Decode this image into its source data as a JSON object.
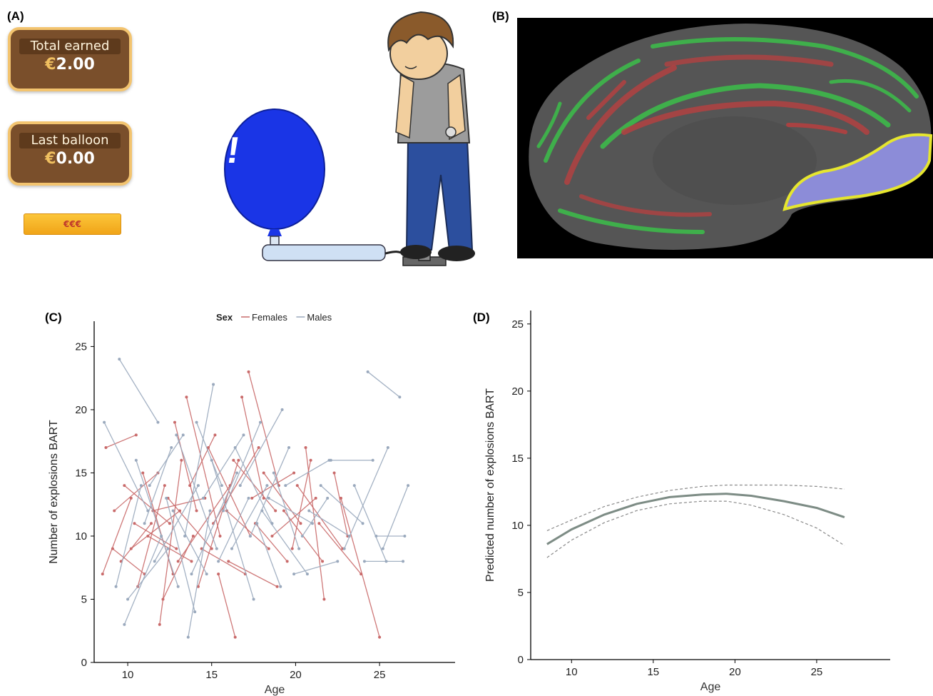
{
  "panel_labels": {
    "a": "(A)",
    "b": "(B)",
    "c": "(C)",
    "d": "(D)"
  },
  "game": {
    "total_label": "Total earned",
    "total_currency": "€",
    "total_amount": "2.00",
    "last_label": "Last balloon",
    "last_currency": "€",
    "last_amount": "0.00",
    "collect_button": "€€€",
    "balloon_mark": "!!",
    "colors": {
      "balloon": "#1a35e6",
      "box": "#7a4f2b",
      "box_border": "#f3c46f",
      "button": "#f5b325"
    }
  },
  "brain": {
    "colors": {
      "surface": "#555555",
      "sulci": "#3cbf4a",
      "gyri": "#b84040",
      "roi": "#8c8cd8",
      "roi_outline": "#e6e62e"
    }
  },
  "chart_data": [
    {
      "type": "line",
      "panel": "C",
      "xlabel": "Age",
      "ylabel": "Number of explosions BART",
      "xlim": [
        8,
        29.5
      ],
      "ylim": [
        0,
        27
      ],
      "xticks": [
        10,
        15,
        20,
        25
      ],
      "yticks": [
        0,
        5,
        10,
        15,
        20,
        25
      ],
      "legend": {
        "title": "Sex",
        "position": "top",
        "entries": [
          "Females",
          "Males"
        ]
      },
      "colors": {
        "Females": "#c96a6a",
        "Males": "#9aa9bd"
      },
      "series": [
        {
          "name": "Females",
          "segments": [
            [
              [
                8.7,
                17
              ],
              [
                10.5,
                18
              ]
            ],
            [
              [
                9.2,
                12
              ],
              [
                11.8,
                15
              ]
            ],
            [
              [
                8.5,
                7
              ],
              [
                10.2,
                13
              ]
            ],
            [
              [
                9.8,
                14
              ],
              [
                12.5,
                11
              ]
            ],
            [
              [
                10.2,
                9
              ],
              [
                13.1,
                12
              ]
            ],
            [
              [
                10.6,
                6
              ],
              [
                12.2,
                14
              ]
            ],
            [
              [
                11.2,
                10
              ],
              [
                13.8,
                8
              ]
            ],
            [
              [
                11.9,
                3
              ],
              [
                13.2,
                16
              ]
            ],
            [
              [
                12.4,
                13
              ],
              [
                15.0,
                9
              ]
            ],
            [
              [
                12.8,
                19
              ],
              [
                14.1,
                12
              ]
            ],
            [
              [
                13.5,
                21
              ],
              [
                15.5,
                10
              ]
            ],
            [
              [
                13.0,
                8
              ],
              [
                16.1,
                14
              ]
            ],
            [
              [
                14.2,
                6
              ],
              [
                16.6,
                16
              ]
            ],
            [
              [
                14.8,
                17
              ],
              [
                17.3,
                10
              ]
            ],
            [
              [
                15.4,
                7
              ],
              [
                16.4,
                2
              ]
            ],
            [
              [
                15.9,
                12
              ],
              [
                18.4,
                9
              ]
            ],
            [
              [
                16.3,
                16
              ],
              [
                18.8,
                12
              ]
            ],
            [
              [
                16.8,
                21
              ],
              [
                18.1,
                13
              ]
            ],
            [
              [
                17.2,
                23
              ],
              [
                19.0,
                14
              ]
            ],
            [
              [
                17.6,
                11
              ],
              [
                19.5,
                8
              ]
            ],
            [
              [
                18.1,
                15
              ],
              [
                20.3,
                11
              ]
            ],
            [
              [
                18.6,
                10
              ],
              [
                21.2,
                13
              ]
            ],
            [
              [
                19.3,
                12
              ],
              [
                21.6,
                8
              ]
            ],
            [
              [
                20.1,
                14
              ],
              [
                22.8,
                9
              ]
            ],
            [
              [
                20.6,
                17
              ],
              [
                21.7,
                5
              ]
            ],
            [
              [
                21.4,
                11
              ],
              [
                23.9,
                7
              ]
            ],
            [
              [
                22.3,
                15
              ],
              [
                23.1,
                10
              ]
            ],
            [
              [
                22.7,
                13
              ],
              [
                25.0,
                2
              ]
            ],
            [
              [
                9.6,
                8
              ],
              [
                11.4,
                11
              ]
            ],
            [
              [
                10.9,
                15
              ],
              [
                12.7,
                7
              ]
            ],
            [
              [
                11.5,
                12
              ],
              [
                14.6,
                13
              ]
            ],
            [
              [
                12.1,
                5
              ],
              [
                13.9,
                10
              ]
            ],
            [
              [
                13.7,
                14
              ],
              [
                15.2,
                18
              ]
            ],
            [
              [
                14.4,
                9
              ],
              [
                17.0,
                7
              ]
            ],
            [
              [
                15.1,
                11
              ],
              [
                17.8,
                17
              ]
            ],
            [
              [
                16.0,
                8
              ],
              [
                18.9,
                6
              ]
            ],
            [
              [
                17.4,
                13
              ],
              [
                19.9,
                15
              ]
            ],
            [
              [
                19.8,
                9
              ],
              [
                20.9,
                16
              ]
            ],
            [
              [
                9.1,
                9
              ],
              [
                11.0,
                7
              ]
            ],
            [
              [
                10.4,
                11
              ],
              [
                12.9,
                9
              ]
            ]
          ]
        },
        {
          "name": "Males",
          "segments": [
            [
              [
                8.6,
                19
              ],
              [
                11.2,
                12
              ]
            ],
            [
              [
                9.5,
                24
              ],
              [
                11.8,
                19
              ]
            ],
            [
              [
                9.3,
                6
              ],
              [
                10.8,
                14
              ]
            ],
            [
              [
                9.8,
                3
              ],
              [
                12.0,
                10
              ]
            ],
            [
              [
                10.5,
                16
              ],
              [
                13.0,
                6
              ]
            ],
            [
              [
                11.0,
                11
              ],
              [
                12.6,
                17
              ]
            ],
            [
              [
                11.6,
                8
              ],
              [
                14.2,
                14
              ]
            ],
            [
              [
                12.3,
                13
              ],
              [
                14.0,
                4
              ]
            ],
            [
              [
                12.9,
                18
              ],
              [
                15.3,
                9
              ]
            ],
            [
              [
                13.4,
                10
              ],
              [
                15.1,
                22
              ]
            ],
            [
              [
                13.8,
                7
              ],
              [
                16.5,
                15
              ]
            ],
            [
              [
                14.5,
                13
              ],
              [
                16.9,
                18
              ]
            ],
            [
              [
                15.0,
                16
              ],
              [
                17.5,
                5
              ]
            ],
            [
              [
                15.7,
                12
              ],
              [
                17.9,
                19
              ]
            ],
            [
              [
                16.2,
                9
              ],
              [
                18.3,
                14
              ]
            ],
            [
              [
                16.7,
                14
              ],
              [
                19.2,
                20
              ]
            ],
            [
              [
                17.3,
                10
              ],
              [
                19.6,
                17
              ]
            ],
            [
              [
                18.0,
                12
              ],
              [
                20.7,
                7
              ]
            ],
            [
              [
                18.7,
                15
              ],
              [
                20.2,
                9
              ]
            ],
            [
              [
                19.4,
                14
              ],
              [
                22.0,
                16
              ]
            ],
            [
              [
                19.9,
                7
              ],
              [
                22.5,
                8
              ]
            ],
            [
              [
                20.8,
                12
              ],
              [
                23.2,
                10
              ]
            ],
            [
              [
                21.5,
                14
              ],
              [
                24.0,
                11
              ]
            ],
            [
              [
                22.1,
                16
              ],
              [
                24.6,
                16
              ]
            ],
            [
              [
                22.9,
                9
              ],
              [
                25.5,
                17
              ]
            ],
            [
              [
                23.5,
                14
              ],
              [
                25.4,
                8
              ]
            ],
            [
              [
                24.3,
                23
              ],
              [
                26.2,
                21
              ]
            ],
            [
              [
                24.8,
                10
              ],
              [
                26.5,
                10
              ]
            ],
            [
              [
                25.2,
                9
              ],
              [
                26.7,
                14
              ]
            ],
            [
              [
                24.1,
                8
              ],
              [
                26.4,
                8
              ]
            ],
            [
              [
                13.6,
                2
              ],
              [
                14.9,
                12
              ]
            ],
            [
              [
                14.1,
                19
              ],
              [
                15.6,
                14
              ]
            ],
            [
              [
                10.0,
                5
              ],
              [
                12.4,
                9
              ]
            ],
            [
              [
                11.3,
                14
              ],
              [
                13.3,
                18
              ]
            ],
            [
              [
                16.4,
                17
              ],
              [
                18.6,
                11
              ]
            ],
            [
              [
                15.4,
                8
              ],
              [
                17.2,
                13
              ]
            ],
            [
              [
                17.7,
                11
              ],
              [
                19.1,
                6
              ]
            ],
            [
              [
                12.7,
                12
              ],
              [
                14.7,
                7
              ]
            ],
            [
              [
                20.4,
                10
              ],
              [
                21.9,
                13
              ]
            ],
            [
              [
                18.4,
                13
              ],
              [
                21.0,
                11
              ]
            ]
          ]
        }
      ]
    },
    {
      "type": "line",
      "panel": "D",
      "xlabel": "Age",
      "ylabel": "Predicted number of explosions BART",
      "xlim": [
        7.5,
        29.5
      ],
      "ylim": [
        0,
        26
      ],
      "xticks": [
        10,
        15,
        20,
        25
      ],
      "yticks": [
        0,
        5,
        10,
        15,
        20,
        25
      ],
      "colors": {
        "fit": "#7d8c85",
        "ci": "#8a8a8a"
      },
      "x": [
        8.5,
        10,
        12,
        14,
        16,
        18,
        19.5,
        21,
        23,
        25,
        26.7
      ],
      "fit": [
        8.6,
        9.7,
        10.8,
        11.6,
        12.1,
        12.3,
        12.35,
        12.2,
        11.8,
        11.3,
        10.6
      ],
      "ci_upper": [
        9.6,
        10.4,
        11.4,
        12.1,
        12.6,
        12.9,
        13.0,
        13.0,
        13.0,
        12.9,
        12.7
      ],
      "ci_lower": [
        7.6,
        8.9,
        10.2,
        11.1,
        11.6,
        11.8,
        11.8,
        11.5,
        10.8,
        9.8,
        8.5
      ]
    }
  ]
}
